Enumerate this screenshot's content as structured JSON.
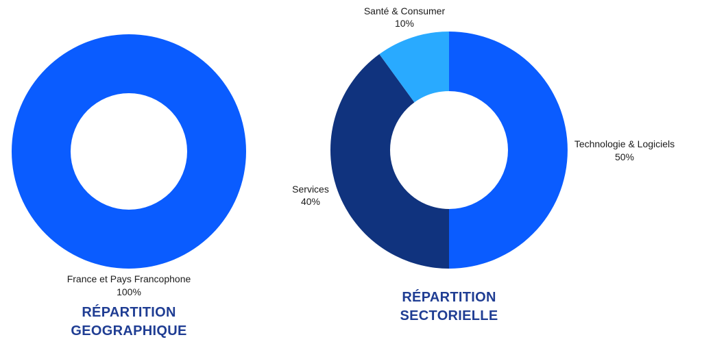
{
  "chart_data": [
    {
      "type": "pie",
      "title": [
        "RÉPARTITION",
        "GEOGRAPHIQUE"
      ],
      "slices": [
        {
          "label": "France et Pays Francophone",
          "pct_label": "100%",
          "value": 100,
          "color": "#0a5cff"
        }
      ],
      "donut": true
    },
    {
      "type": "pie",
      "title": [
        "RÉPARTITION",
        "SECTORIELLE"
      ],
      "slices": [
        {
          "label": "Technologie & Logiciels",
          "pct_label": "50%",
          "value": 50,
          "color": "#0a5cff"
        },
        {
          "label": "Services",
          "pct_label": "40%",
          "value": 40,
          "color": "#10337e"
        },
        {
          "label": "Santé & Consumer",
          "pct_label": "10%",
          "value": 10,
          "color": "#29aaff"
        }
      ],
      "donut": true
    }
  ]
}
